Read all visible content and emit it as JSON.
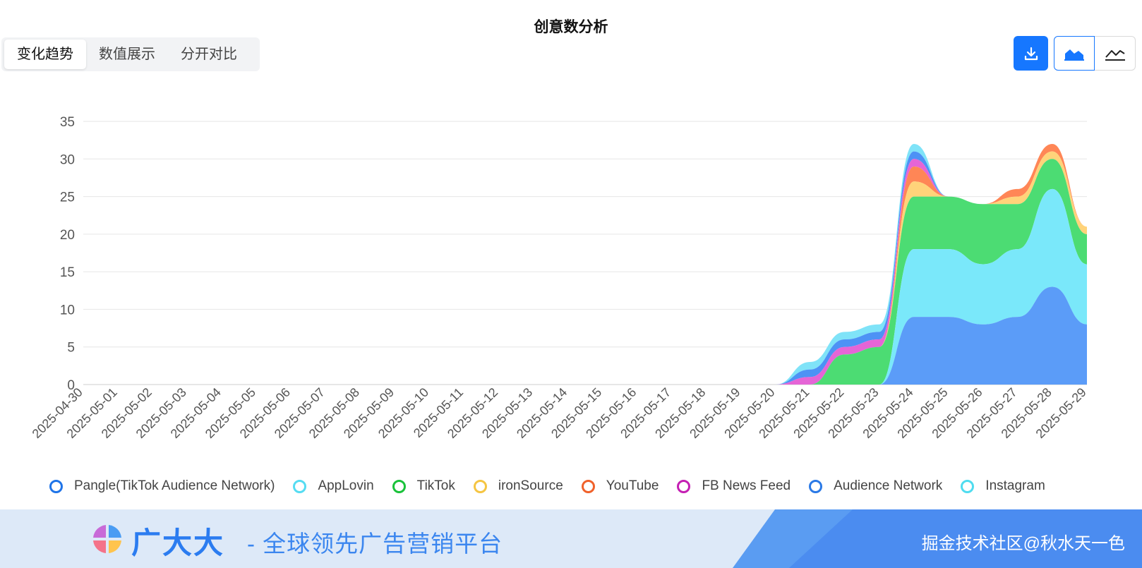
{
  "title": "创意数分析",
  "tabs": [
    {
      "label": "变化趋势",
      "active": true
    },
    {
      "label": "数值展示",
      "active": false
    },
    {
      "label": "分开对比",
      "active": false
    }
  ],
  "toolbar": {
    "download_icon": "download-icon",
    "area_icon": "area-chart-icon",
    "line_icon": "line-chart-icon",
    "accent": "#1677ff"
  },
  "chart_data": {
    "type": "area",
    "stacked": true,
    "smooth": true,
    "title": "",
    "xlabel": "",
    "ylabel": "",
    "ylim": [
      0,
      35
    ],
    "yticks": [
      0,
      5,
      10,
      15,
      20,
      25,
      30,
      35
    ],
    "grid": true,
    "legend_position": "bottom",
    "x": [
      "2025-04-30",
      "2025-05-01",
      "2025-05-02",
      "2025-05-03",
      "2025-05-04",
      "2025-05-05",
      "2025-05-06",
      "2025-05-07",
      "2025-05-08",
      "2025-05-09",
      "2025-05-10",
      "2025-05-11",
      "2025-05-12",
      "2025-05-13",
      "2025-05-14",
      "2025-05-15",
      "2025-05-16",
      "2025-05-17",
      "2025-05-18",
      "2025-05-19",
      "2025-05-20",
      "2025-05-21",
      "2025-05-22",
      "2025-05-23",
      "2025-05-24",
      "2025-05-25",
      "2025-05-26",
      "2025-05-27",
      "2025-05-28",
      "2025-05-29"
    ],
    "series": [
      {
        "name": "Pangle(TikTok Audience Network)",
        "color": "#5b9cf8",
        "values": [
          0,
          0,
          0,
          0,
          0,
          0,
          0,
          0,
          0,
          0,
          0,
          0,
          0,
          0,
          0,
          0,
          0,
          0,
          0,
          0,
          0,
          0,
          0,
          0,
          9,
          9,
          8,
          9,
          13,
          8
        ]
      },
      {
        "name": "AppLovin",
        "color": "#7ae8fa",
        "values": [
          0,
          0,
          0,
          0,
          0,
          0,
          0,
          0,
          0,
          0,
          0,
          0,
          0,
          0,
          0,
          0,
          0,
          0,
          0,
          0,
          0,
          0,
          0,
          0,
          9,
          9,
          8,
          9,
          13,
          8
        ]
      },
      {
        "name": "TikTok",
        "color": "#4cdc73",
        "values": [
          0,
          0,
          0,
          0,
          0,
          0,
          0,
          0,
          0,
          0,
          0,
          0,
          0,
          0,
          0,
          0,
          0,
          0,
          0,
          0,
          0,
          0,
          4,
          5,
          7,
          7,
          8,
          6,
          4,
          4
        ]
      },
      {
        "name": "ironSource",
        "color": "#ffd37a",
        "values": [
          0,
          0,
          0,
          0,
          0,
          0,
          0,
          0,
          0,
          0,
          0,
          0,
          0,
          0,
          0,
          0,
          0,
          0,
          0,
          0,
          0,
          0,
          0,
          0,
          2,
          0,
          0,
          1,
          1,
          1
        ]
      },
      {
        "name": "YouTube",
        "color": "#ff8656",
        "values": [
          0,
          0,
          0,
          0,
          0,
          0,
          0,
          0,
          0,
          0,
          0,
          0,
          0,
          0,
          0,
          0,
          0,
          0,
          0,
          0,
          0,
          0,
          0,
          0,
          2,
          0,
          0,
          1,
          1,
          0
        ]
      },
      {
        "name": "FB News Feed",
        "color": "#e565d6",
        "values": [
          0,
          0,
          0,
          0,
          0,
          0,
          0,
          0,
          0,
          0,
          0,
          0,
          0,
          0,
          0,
          0,
          0,
          0,
          0,
          0,
          0,
          1,
          1,
          1,
          1,
          0,
          0,
          0,
          0,
          0
        ]
      },
      {
        "name": "Audience Network",
        "color": "#4d92f5",
        "values": [
          0,
          0,
          0,
          0,
          0,
          0,
          0,
          0,
          0,
          0,
          0,
          0,
          0,
          0,
          0,
          0,
          0,
          0,
          0,
          0,
          0,
          1,
          1,
          1,
          1,
          0,
          0,
          0,
          0,
          0
        ]
      },
      {
        "name": "Instagram",
        "color": "#7fe3f8",
        "values": [
          0,
          0,
          0,
          0,
          0,
          0,
          0,
          0,
          0,
          0,
          0,
          0,
          0,
          0,
          0,
          0,
          0,
          0,
          0,
          0,
          0,
          1,
          1,
          1,
          1,
          0,
          0,
          0,
          0,
          0
        ]
      }
    ]
  },
  "legend": [
    {
      "label": "Pangle(TikTok Audience Network)",
      "color": "#1f74e8"
    },
    {
      "label": "AppLovin",
      "color": "#55dcf2"
    },
    {
      "label": "TikTok",
      "color": "#19c23a"
    },
    {
      "label": "ironSource",
      "color": "#f5c542"
    },
    {
      "label": "YouTube",
      "color": "#f0612a"
    },
    {
      "label": "FB News Feed",
      "color": "#c41fb3"
    },
    {
      "label": "Audience Network",
      "color": "#2a79e6"
    },
    {
      "label": "Instagram",
      "color": "#4fdcef"
    }
  ],
  "banner": {
    "brand": "广大大",
    "slogan": "- 全球领先广告营销平台",
    "credit": "掘金技术社区@秋水天一色"
  }
}
